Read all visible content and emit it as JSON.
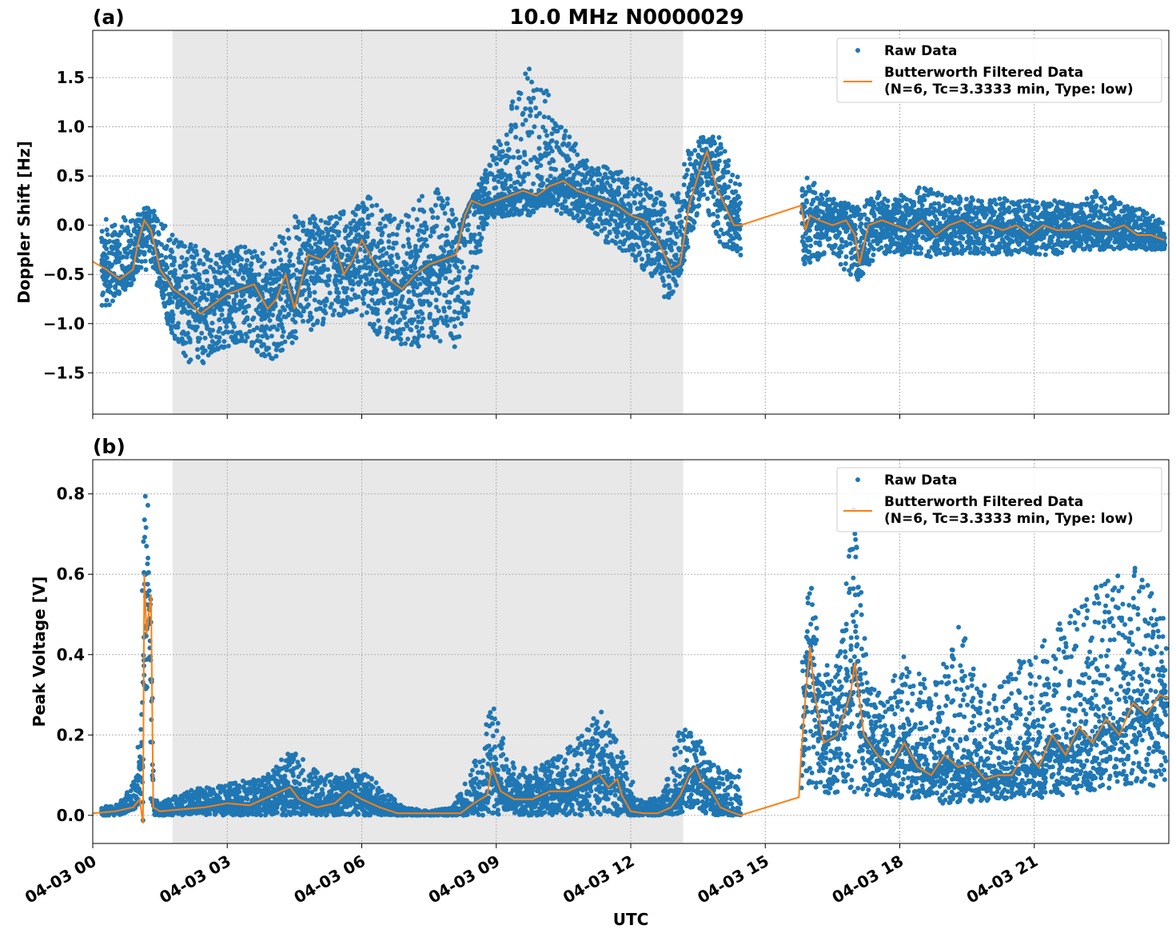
{
  "figure": {
    "title": "10.0 MHz N0000029",
    "xlabel": "UTC"
  },
  "legend": {
    "raw_label": "Raw Data",
    "filt_label_1": "Butterworth Filtered Data",
    "filt_label_2": "(N=6, Tc=3.3333 min, Type: low)"
  },
  "colors": {
    "raw": "#1f77b4",
    "filtered": "#ff7f0e",
    "shade": "#e8e8e8",
    "grid": "#b0b0b0"
  },
  "chart_data": [
    {
      "panel": "(a)",
      "type": "scatter",
      "ylabel": "Doppler Shift [Hz]",
      "xlim_hours": [
        0,
        24
      ],
      "ylim": [
        -1.92,
        1.98
      ],
      "yticks": [
        -1.5,
        -1.0,
        -0.5,
        0.0,
        0.5,
        1.0,
        1.5
      ],
      "ytick_labels": [
        "−1.5",
        "−1.0",
        "−0.5",
        "0.0",
        "0.5",
        "1.0",
        "1.5"
      ],
      "shaded_hours": [
        1.78,
        13.17
      ],
      "grid": true,
      "legend_position": "top-right",
      "series": [
        {
          "name": "Butterworth Filtered Data",
          "x_hours": [
            0,
            0.3,
            0.6,
            0.9,
            1.0,
            1.15,
            1.3,
            1.5,
            1.8,
            2.1,
            2.4,
            2.7,
            3.0,
            3.3,
            3.6,
            3.9,
            4.1,
            4.3,
            4.5,
            4.8,
            5.1,
            5.4,
            5.6,
            5.8,
            6.0,
            6.3,
            6.6,
            6.9,
            7.2,
            7.5,
            7.8,
            8.1,
            8.3,
            8.45,
            8.7,
            9.0,
            9.3,
            9.6,
            9.9,
            10.2,
            10.5,
            10.8,
            11.1,
            11.4,
            11.7,
            12.0,
            12.3,
            12.6,
            12.9,
            13.1,
            13.3,
            13.5,
            13.7,
            13.9,
            14.1,
            14.3,
            14.45,
            15.8,
            15.9,
            16.0,
            16.2,
            16.5,
            16.8,
            17.0,
            17.1,
            17.3,
            17.6,
            17.9,
            18.2,
            18.5,
            18.8,
            19.1,
            19.4,
            19.7,
            20.0,
            20.3,
            20.6,
            20.9,
            21.2,
            21.5,
            21.8,
            22.1,
            22.4,
            22.7,
            23.0,
            23.3,
            23.6,
            23.9
          ],
          "y": [
            -0.37,
            -0.45,
            -0.55,
            -0.45,
            -0.2,
            0.05,
            -0.05,
            -0.45,
            -0.65,
            -0.75,
            -0.9,
            -0.8,
            -0.7,
            -0.65,
            -0.6,
            -0.85,
            -0.75,
            -0.5,
            -0.85,
            -0.3,
            -0.35,
            -0.2,
            -0.5,
            -0.35,
            -0.15,
            -0.4,
            -0.55,
            -0.65,
            -0.5,
            -0.4,
            -0.35,
            -0.3,
            0.1,
            0.25,
            0.2,
            0.25,
            0.3,
            0.35,
            0.3,
            0.4,
            0.45,
            0.35,
            0.3,
            0.25,
            0.2,
            0.1,
            0.05,
            -0.15,
            -0.45,
            -0.4,
            0.2,
            0.5,
            0.75,
            0.4,
            0.2,
            0.0,
            0.0,
            0.2,
            -0.05,
            0.1,
            0.05,
            0.0,
            0.05,
            -0.1,
            -0.4,
            0.0,
            0.05,
            0.0,
            -0.05,
            0.05,
            -0.1,
            0.0,
            0.05,
            -0.05,
            0.0,
            -0.05,
            0.0,
            -0.1,
            0.0,
            -0.05,
            -0.05,
            0.0,
            -0.05,
            -0.05,
            0.0,
            -0.1,
            -0.1,
            -0.15
          ]
        },
        {
          "name": "Raw Data",
          "x_hours": [
            0.2,
            1.3,
            1.8,
            2.3,
            2.7,
            3.3,
            3.9,
            4.5,
            5.2,
            5.7,
            6.2,
            6.8,
            7.3,
            7.8,
            8.2,
            8.8,
            9.3,
            9.8,
            10.0,
            10.5,
            11.0,
            11.5,
            12.0,
            12.5,
            12.9,
            13.3,
            13.6,
            14.0,
            14.3,
            15.9,
            16.5,
            17.0,
            17.5,
            18.0,
            18.5,
            19.0,
            19.5,
            20.0,
            20.5,
            21.0,
            21.5,
            22.0,
            22.5,
            23.0,
            23.5,
            23.9
          ],
          "y_min": [
            -0.9,
            -0.4,
            -1.2,
            -1.5,
            -1.3,
            -1.2,
            -1.4,
            -1.2,
            -1.0,
            -0.9,
            -1.1,
            -1.2,
            -1.3,
            -1.2,
            -1.3,
            0.05,
            0.1,
            0.1,
            0.2,
            0.1,
            0.0,
            -0.2,
            -0.3,
            -0.6,
            -0.8,
            -0.2,
            0.3,
            -0.2,
            -0.3,
            -0.4,
            -0.3,
            -0.6,
            -0.3,
            -0.3,
            -0.35,
            -0.3,
            -0.3,
            -0.3,
            -0.3,
            -0.3,
            -0.3,
            -0.25,
            -0.25,
            -0.25,
            -0.25,
            -0.25
          ],
          "y_max": [
            0.05,
            0.2,
            -0.1,
            -0.2,
            -0.3,
            -0.2,
            -0.3,
            0.1,
            0.1,
            0.2,
            0.3,
            0.05,
            0.3,
            0.4,
            0.0,
            0.6,
            1.2,
            1.7,
            1.5,
            1.0,
            0.7,
            0.6,
            0.5,
            0.4,
            0.3,
            0.8,
            0.9,
            0.9,
            0.5,
            0.5,
            0.3,
            0.2,
            0.35,
            0.3,
            0.4,
            0.3,
            0.3,
            0.25,
            0.3,
            0.25,
            0.25,
            0.2,
            0.4,
            0.2,
            0.15,
            0.05
          ]
        }
      ]
    },
    {
      "panel": "(b)",
      "type": "scatter",
      "ylabel": "Peak Voltage [V]",
      "xlim_hours": [
        0,
        24
      ],
      "ylim": [
        -0.07,
        0.885
      ],
      "yticks": [
        0.0,
        0.2,
        0.4,
        0.6,
        0.8
      ],
      "ytick_labels": [
        "0.0",
        "0.2",
        "0.4",
        "0.6",
        "0.8"
      ],
      "shaded_hours": [
        1.78,
        13.17
      ],
      "grid": true,
      "legend_position": "top-right",
      "series": [
        {
          "name": "Butterworth Filtered Data",
          "x_hours": [
            0,
            0.5,
            0.9,
            1.05,
            1.12,
            1.15,
            1.2,
            1.25,
            1.3,
            1.35,
            1.5,
            2.0,
            2.5,
            3.0,
            3.5,
            4.0,
            4.4,
            4.6,
            5.0,
            5.4,
            5.7,
            6.0,
            6.4,
            6.8,
            7.2,
            7.8,
            8.2,
            8.5,
            8.8,
            8.9,
            9.1,
            9.4,
            9.8,
            10.2,
            10.6,
            11.0,
            11.3,
            11.5,
            11.7,
            11.8,
            12.0,
            12.3,
            12.6,
            12.9,
            13.1,
            13.3,
            13.45,
            13.6,
            13.8,
            14.0,
            14.2,
            14.45,
            15.75,
            15.8,
            15.9,
            16.0,
            16.1,
            16.3,
            16.6,
            16.9,
            17.0,
            17.2,
            17.5,
            17.8,
            18.1,
            18.4,
            18.7,
            19.0,
            19.3,
            19.6,
            19.9,
            20.2,
            20.5,
            20.8,
            21.1,
            21.4,
            21.7,
            22.0,
            22.3,
            22.6,
            22.9,
            23.2,
            23.5,
            23.8,
            24.0
          ],
          "y": [
            0.005,
            0.01,
            0.02,
            0.04,
            -0.02,
            0.6,
            0.45,
            0.5,
            0.55,
            0.02,
            0.01,
            0.015,
            0.02,
            0.03,
            0.025,
            0.05,
            0.07,
            0.04,
            0.02,
            0.03,
            0.06,
            0.04,
            0.02,
            0.005,
            0.005,
            0.005,
            0.005,
            0.03,
            0.05,
            0.12,
            0.06,
            0.04,
            0.04,
            0.06,
            0.06,
            0.08,
            0.1,
            0.07,
            0.09,
            0.05,
            0.01,
            0.005,
            0.005,
            0.02,
            0.05,
            0.1,
            0.12,
            0.08,
            0.06,
            0.02,
            0.01,
            0.0,
            0.045,
            0.15,
            0.3,
            0.42,
            0.3,
            0.18,
            0.2,
            0.3,
            0.38,
            0.2,
            0.15,
            0.12,
            0.18,
            0.12,
            0.1,
            0.15,
            0.12,
            0.13,
            0.09,
            0.1,
            0.1,
            0.16,
            0.12,
            0.2,
            0.15,
            0.22,
            0.18,
            0.24,
            0.2,
            0.28,
            0.25,
            0.3,
            0.29
          ]
        },
        {
          "name": "Raw Data",
          "x_hours": [
            0.2,
            0.6,
            1.0,
            1.1,
            1.2,
            1.25,
            1.3,
            1.5,
            2.0,
            2.5,
            3.0,
            3.5,
            4.0,
            4.4,
            5.0,
            5.5,
            6.0,
            6.5,
            7.0,
            7.5,
            8.0,
            8.4,
            8.9,
            9.4,
            9.9,
            10.4,
            10.9,
            11.3,
            11.7,
            12.2,
            12.7,
            13.0,
            13.4,
            13.7,
            14.0,
            14.3,
            15.8,
            16.0,
            16.3,
            16.6,
            17.0,
            17.3,
            17.7,
            18.1,
            18.5,
            18.9,
            19.3,
            19.7,
            20.1,
            20.5,
            20.9,
            21.3,
            21.7,
            22.1,
            22.5,
            22.9,
            23.3,
            23.7,
            23.95
          ],
          "y_min": [
            0.0,
            0.0,
            0.02,
            0.3,
            0.3,
            0.35,
            0.0,
            0.0,
            0.0,
            0.0,
            0.0,
            0.0,
            0.0,
            0.0,
            0.0,
            0.0,
            0.0,
            0.0,
            0.0,
            0.0,
            0.0,
            0.0,
            0.0,
            0.0,
            0.0,
            0.0,
            0.0,
            0.0,
            0.0,
            0.0,
            0.0,
            0.0,
            0.02,
            0.0,
            0.0,
            0.0,
            0.05,
            0.08,
            0.05,
            0.05,
            0.04,
            0.05,
            0.05,
            0.04,
            0.04,
            0.03,
            0.03,
            0.03,
            0.04,
            0.04,
            0.05,
            0.03,
            0.05,
            0.05,
            0.06,
            0.07,
            0.08,
            0.07,
            0.08
          ],
          "y_max": [
            0.02,
            0.03,
            0.1,
            0.83,
            0.84,
            0.8,
            0.05,
            0.03,
            0.06,
            0.07,
            0.08,
            0.09,
            0.11,
            0.17,
            0.11,
            0.1,
            0.12,
            0.06,
            0.02,
            0.01,
            0.02,
            0.1,
            0.28,
            0.12,
            0.12,
            0.15,
            0.2,
            0.27,
            0.2,
            0.05,
            0.04,
            0.2,
            0.24,
            0.15,
            0.12,
            0.1,
            0.33,
            0.6,
            0.37,
            0.4,
            0.78,
            0.32,
            0.3,
            0.4,
            0.35,
            0.35,
            0.5,
            0.35,
            0.3,
            0.4,
            0.4,
            0.45,
            0.5,
            0.55,
            0.58,
            0.6,
            0.62,
            0.55,
            0.5
          ]
        }
      ]
    }
  ],
  "x_axis": {
    "tick_hours": [
      0,
      3,
      6,
      9,
      12,
      15,
      18,
      21
    ],
    "tick_labels": [
      "04-03 00",
      "04-03 03",
      "04-03 06",
      "04-03 09",
      "04-03 12",
      "04-03 15",
      "04-03 18",
      "04-03 21"
    ]
  }
}
